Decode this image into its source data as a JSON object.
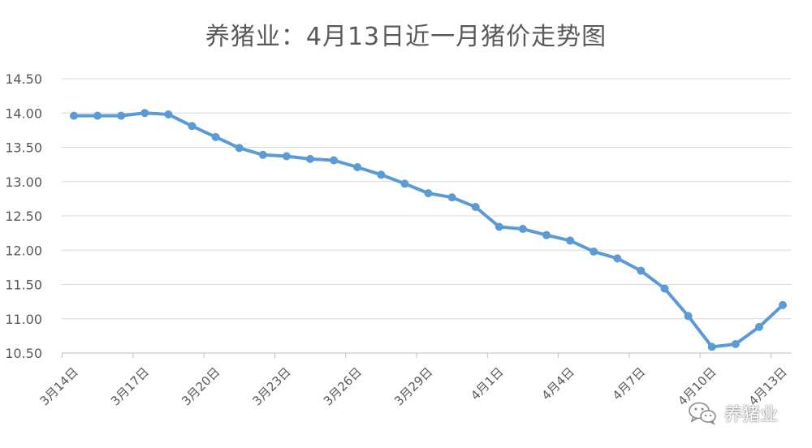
{
  "chart_data": {
    "type": "line",
    "title": "养猪业：4月13日近一月猪价走势图",
    "xlabel": "",
    "ylabel": "",
    "ylim": [
      10.5,
      14.5
    ],
    "yticks": [
      "14.50",
      "14.00",
      "13.50",
      "13.00",
      "12.50",
      "12.00",
      "11.50",
      "11.00",
      "10.50"
    ],
    "x": [
      "3月14日",
      "3月15日",
      "3月16日",
      "3月17日",
      "3月18日",
      "3月19日",
      "3月20日",
      "3月21日",
      "3月22日",
      "3月23日",
      "3月24日",
      "3月25日",
      "3月26日",
      "3月27日",
      "3月28日",
      "3月29日",
      "3月30日",
      "3月31日",
      "4月1日",
      "4月2日",
      "4月3日",
      "4月4日",
      "4月5日",
      "4月6日",
      "4月7日",
      "4月8日",
      "4月9日",
      "4月10日",
      "4月11日",
      "4月12日",
      "4月13日"
    ],
    "xtick_labels": [
      "3月14日",
      "3月17日",
      "3月20日",
      "3月23日",
      "3月26日",
      "3月29日",
      "4月1日",
      "4月4日",
      "4月7日",
      "4月10日",
      "4月13日"
    ],
    "series": [
      {
        "values": [
          13.96,
          13.96,
          13.96,
          14.0,
          13.98,
          13.81,
          13.65,
          13.49,
          13.39,
          13.37,
          13.33,
          13.31,
          13.21,
          13.1,
          12.97,
          12.83,
          12.77,
          12.63,
          12.34,
          12.31,
          12.22,
          12.14,
          11.98,
          11.88,
          11.7,
          11.44,
          11.04,
          10.59,
          10.63,
          10.88,
          11.2
        ]
      }
    ],
    "grid": true,
    "legend": "none",
    "line_color": "#5B9BD5",
    "grid_color": "#D9D9D9"
  },
  "watermark": {
    "text": "养猪业",
    "icon": "wechat-icon"
  }
}
